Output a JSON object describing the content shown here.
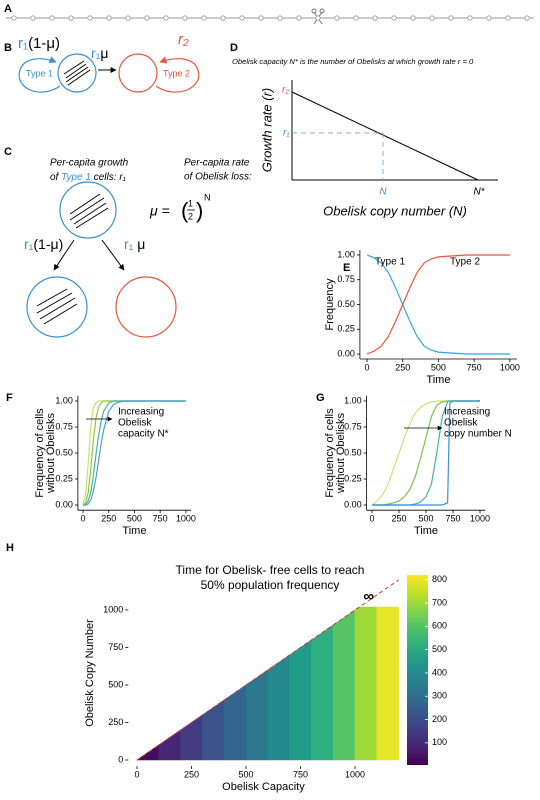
{
  "panel_labels": [
    "A",
    "B",
    "C",
    "D",
    "E",
    "F",
    "G",
    "H"
  ],
  "panel_b": {
    "type1_rate": {
      "r": "r₁",
      "factor": "(1-μ)"
    },
    "transition_rate": {
      "r": "r₁",
      "factor": "μ"
    },
    "type2_rate": "r₂",
    "type1": "Type 1",
    "type2": "Type 2"
  },
  "panel_c": {
    "growth": {
      "line1": "Per-capita growth",
      "of": "of",
      "type": "Type 1",
      "cells": "cells:",
      "rate": "r₁"
    },
    "loss": {
      "line1": "Per-capita rate",
      "line2": "of Obelisk loss:"
    },
    "formula": {
      "lhs": "μ =",
      "open": "(",
      "numerator": "1",
      "denominator": "2",
      "close": ")",
      "exponent": "N"
    },
    "left_arrow": {
      "r": "r₁",
      "factor": "(1-μ)"
    },
    "right_arrow": {
      "r": "r₁",
      "factor": "μ"
    }
  },
  "panel_d": {
    "title": "Obelisk capacity N* is the number of Obelisks at which growth rate r = 0",
    "ylabel": "Growth rate (r)",
    "xlabel": "Obelisk copy number (N)",
    "yticks": [
      "r₂",
      "r₁"
    ],
    "xticks": [
      "N",
      "N*"
    ]
  },
  "chart_data": [
    {
      "type": "line",
      "xlabel": "Time",
      "ylabel": "Frequency",
      "x": [
        0,
        50,
        100,
        150,
        200,
        250,
        300,
        350,
        400,
        450,
        500,
        600,
        700,
        800,
        900,
        1000
      ],
      "series": [
        {
          "name": "Type 1",
          "color": "#29a9e1",
          "values": [
            1,
            0.97,
            0.92,
            0.82,
            0.67,
            0.5,
            0.33,
            0.18,
            0.08,
            0.04,
            0.02,
            0.01,
            0,
            0,
            0,
            0
          ]
        },
        {
          "name": "Type 2",
          "color": "#e8553e",
          "values": [
            0,
            0.03,
            0.08,
            0.18,
            0.33,
            0.5,
            0.67,
            0.82,
            0.92,
            0.96,
            0.98,
            0.99,
            1,
            1,
            1,
            1
          ]
        }
      ],
      "xlim": [
        -50,
        1050
      ],
      "ylim": [
        -0.05,
        1.05
      ],
      "xticks": [
        0,
        250,
        500,
        750,
        1000
      ],
      "yticks": [
        {
          "value": 0,
          "label": "0.00"
        },
        {
          "value": 0.25,
          "label": "0.25"
        },
        {
          "value": 0.5,
          "label": "0.50"
        },
        {
          "value": 0.75,
          "label": "0.75"
        },
        {
          "value": 1,
          "label": "1.00"
        }
      ]
    },
    {
      "type": "line",
      "xlabel": "Time",
      "ylabel": [
        "Frequency of cells",
        "without Obelisks"
      ],
      "annotation": [
        "Increasing",
        "Obelisk",
        "capacity N*"
      ],
      "x": [
        0,
        25,
        50,
        75,
        100,
        125,
        150,
        175,
        200,
        250,
        300,
        350,
        400,
        450,
        500,
        600,
        700,
        800,
        900,
        1000
      ],
      "series": [
        {
          "color": "#c8e06a",
          "values": [
            0,
            0.1,
            0.4,
            0.75,
            0.93,
            0.98,
            1,
            1,
            1,
            1,
            1,
            1,
            1,
            1,
            1,
            1,
            1,
            1,
            1,
            1
          ]
        },
        {
          "color": "#8cc84b",
          "values": [
            0,
            0.02,
            0.12,
            0.35,
            0.62,
            0.83,
            0.94,
            0.98,
            1,
            1,
            1,
            1,
            1,
            1,
            1,
            1,
            1,
            1,
            1,
            1
          ]
        },
        {
          "color": "#44b59b",
          "values": [
            0,
            0,
            0.04,
            0.12,
            0.28,
            0.48,
            0.66,
            0.8,
            0.9,
            0.98,
            1,
            1,
            1,
            1,
            1,
            1,
            1,
            1,
            1,
            1
          ]
        },
        {
          "color": "#4a9fd8",
          "values": [
            0,
            0,
            0.01,
            0.05,
            0.13,
            0.26,
            0.42,
            0.58,
            0.72,
            0.9,
            0.97,
            0.99,
            1,
            1,
            1,
            1,
            1,
            1,
            1,
            1
          ]
        }
      ],
      "xlim": [
        -50,
        1050
      ],
      "ylim": [
        -0.05,
        1.05
      ],
      "xticks": [
        0,
        250,
        500,
        750,
        1000
      ],
      "yticks": [
        {
          "value": 0,
          "label": "0.00"
        },
        {
          "value": 0.25,
          "label": "0.25"
        },
        {
          "value": 0.5,
          "label": "0.50"
        },
        {
          "value": 0.75,
          "label": "0.75"
        },
        {
          "value": 1,
          "label": "1.00"
        }
      ]
    },
    {
      "type": "line",
      "xlabel": "Time",
      "ylabel": [
        "Frequency of cells",
        "without Obelisks"
      ],
      "annotation": [
        "Increasing",
        "Obelisk",
        "copy number N"
      ],
      "x": [
        0,
        50,
        100,
        150,
        200,
        250,
        300,
        350,
        400,
        450,
        500,
        550,
        600,
        650,
        700,
        710,
        720,
        750,
        800,
        900,
        1000
      ],
      "series": [
        {
          "color": "#cfe07a",
          "values": [
            0,
            0.04,
            0.1,
            0.2,
            0.35,
            0.5,
            0.65,
            0.78,
            0.88,
            0.94,
            0.97,
            0.99,
            1,
            1,
            1,
            1,
            1,
            1,
            1,
            1,
            1
          ]
        },
        {
          "color": "#7dc24f",
          "values": [
            0,
            0,
            0,
            0.01,
            0.02,
            0.04,
            0.08,
            0.15,
            0.27,
            0.45,
            0.65,
            0.85,
            0.96,
            0.99,
            1,
            1,
            1,
            1,
            1,
            1,
            1
          ]
        },
        {
          "color": "#3fb5a3",
          "values": [
            0,
            0,
            0,
            0,
            0,
            0,
            0,
            0,
            0.01,
            0.03,
            0.08,
            0.2,
            0.5,
            0.85,
            0.99,
            1,
            1,
            1,
            1,
            1,
            1
          ]
        },
        {
          "color": "#3a8ed8",
          "values": [
            0,
            0,
            0,
            0,
            0,
            0,
            0,
            0,
            0,
            0,
            0,
            0,
            0,
            0,
            0.02,
            0.5,
            0.98,
            1,
            1,
            1,
            1
          ]
        }
      ],
      "xlim": [
        -50,
        1050
      ],
      "ylim": [
        -0.05,
        1.05
      ],
      "xticks": [
        0,
        250,
        500,
        750,
        1000
      ],
      "yticks": [
        {
          "value": 0,
          "label": "0.00"
        },
        {
          "value": 0.25,
          "label": "0.25"
        },
        {
          "value": 0.5,
          "label": "0.50"
        },
        {
          "value": 0.75,
          "label": "0.75"
        },
        {
          "value": 1,
          "label": "1.00"
        }
      ]
    },
    {
      "type": "heatmap",
      "title": [
        "Time for Obelisk- free cells to reach",
        "50% population frequency"
      ],
      "xlabel": "Obelisk Capacity",
      "ylabel": "Obelisk Copy Number",
      "annotation": "∞",
      "x_bins": [
        0,
        100,
        200,
        300,
        400,
        500,
        600,
        700,
        800,
        900,
        1000,
        1100,
        1200
      ],
      "y_bins": [
        0,
        1020
      ],
      "values": [
        30,
        90,
        150,
        210,
        270,
        330,
        390,
        450,
        520,
        600,
        700,
        790
      ],
      "xlim": [
        -40,
        1200
      ],
      "ylim": [
        -40,
        1200
      ],
      "xticks": [
        0,
        250,
        500,
        750,
        1000
      ],
      "yticks": [
        0,
        250,
        500,
        750,
        1000
      ],
      "clim": [
        5,
        820
      ],
      "cticks": [
        100,
        200,
        300,
        400,
        500,
        600,
        700,
        800
      ],
      "diagonal_color": "#e0322c"
    }
  ]
}
